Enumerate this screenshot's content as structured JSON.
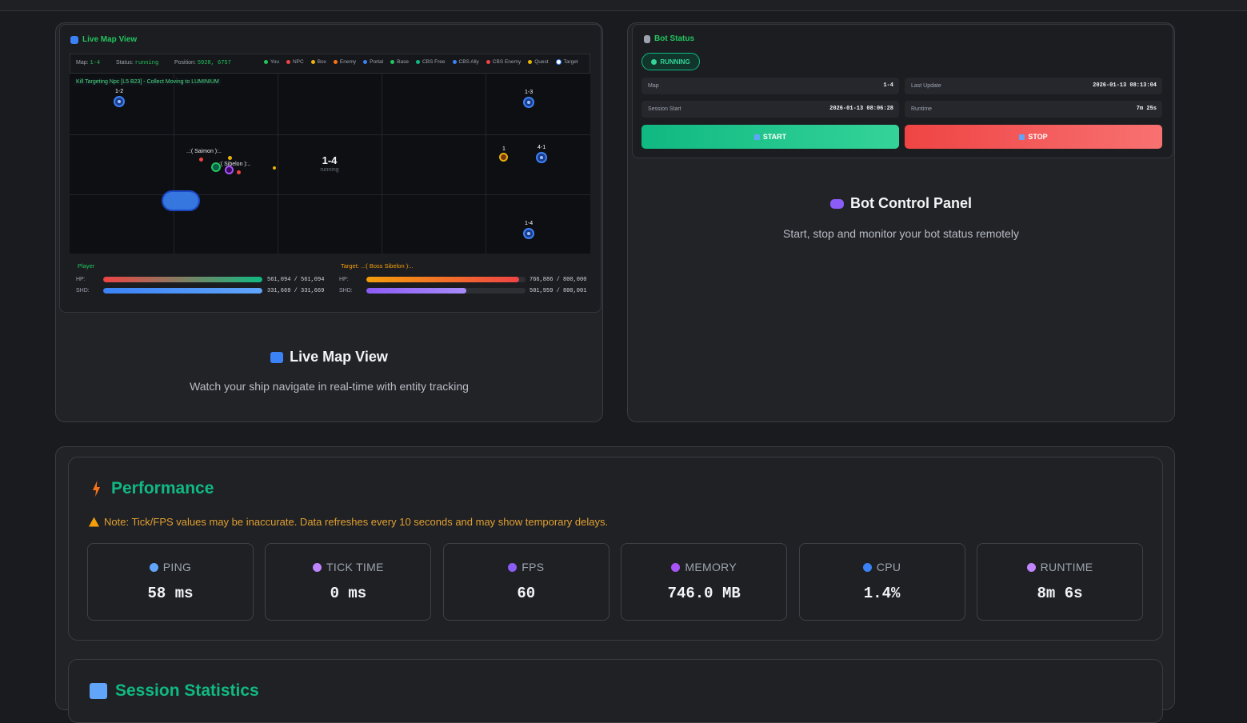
{
  "live_map": {
    "header": "Live Map View",
    "info": {
      "map_label": "Map:",
      "map": "1-4",
      "status_label": "Status:",
      "status": "running",
      "position_label": "Position:",
      "position": "5928, 6757"
    },
    "legend": [
      {
        "label": "You",
        "color": "#22c55e"
      },
      {
        "label": "NPC",
        "color": "#ef4444"
      },
      {
        "label": "Box",
        "color": "#eab308"
      },
      {
        "label": "Enemy",
        "color": "#f97316"
      },
      {
        "label": "Portal",
        "color": "#3b82f6"
      },
      {
        "label": "Base",
        "color": "#22c55e"
      },
      {
        "label": "CBS Free",
        "color": "#10b981"
      },
      {
        "label": "CBS Ally",
        "color": "#3b82f6"
      },
      {
        "label": "CBS Enemy",
        "color": "#ef4444"
      },
      {
        "label": "Quest",
        "color": "#eab308"
      },
      {
        "label": "Target",
        "color": "#ffffff"
      }
    ],
    "status_line": "Kill Targeting Npc [L5 B23] - Collect Moving to LUMINIUM",
    "portals": [
      "1-2",
      "1-3",
      "4-1",
      "1-4"
    ],
    "quest_label": "1",
    "center_map": "1-4",
    "center_status": "running",
    "entity_labels": [
      "..:( Saimon ):..",
      "..:( Sibelon ):.."
    ],
    "player": {
      "title": "Player",
      "hp_label": "HP:",
      "hp": "561,094 / 561,094",
      "shd_label": "SHD:",
      "shd": "331,669 / 331,669"
    },
    "target": {
      "title": "Target: ..:( Boss Sibelon ):..",
      "hp_label": "HP:",
      "hp": "766,886 / 800,000",
      "shd_label": "SHD:",
      "shd": "501,959 / 800,001"
    }
  },
  "map_caption": {
    "title": "Live Map View",
    "text": "Watch your ship navigate in real-time with entity tracking"
  },
  "bot_status": {
    "title": "Bot Status",
    "state": "RUNNING",
    "fields": [
      {
        "label": "Map",
        "value": "1-4"
      },
      {
        "label": "Last Update",
        "value": "2026-01-13 08:13:04"
      },
      {
        "label": "Session Start",
        "value": "2026-01-13 08:06:28"
      },
      {
        "label": "Runtime",
        "value": "7m 25s"
      }
    ],
    "start": "START",
    "stop": "STOP"
  },
  "control_caption": {
    "title": "Bot Control Panel",
    "text": "Start, stop and monitor your bot status remotely"
  },
  "performance": {
    "title": "Performance",
    "note": "Note: Tick/FPS values may be inaccurate. Data refreshes every 10 seconds and may show temporary delays.",
    "metrics": [
      {
        "label": "PING",
        "value": "58 ms"
      },
      {
        "label": "TICK TIME",
        "value": "0 ms"
      },
      {
        "label": "FPS",
        "value": "60"
      },
      {
        "label": "MEMORY",
        "value": "746.0 MB"
      },
      {
        "label": "CPU",
        "value": "1.4%"
      },
      {
        "label": "RUNTIME",
        "value": "8m 6s"
      }
    ]
  },
  "session_statistics": {
    "title": "Session Statistics"
  }
}
